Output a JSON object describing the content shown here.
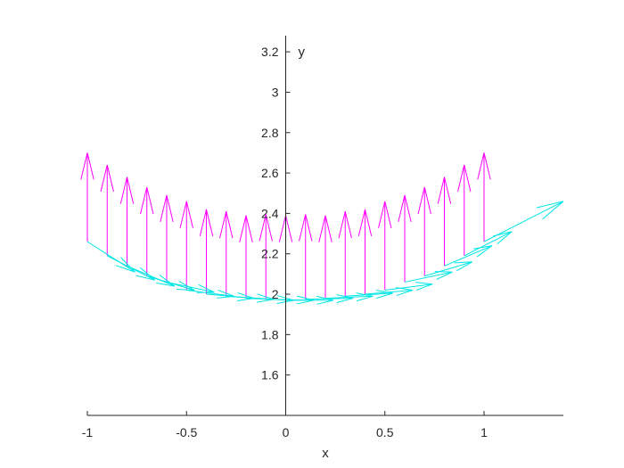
{
  "chart_data": {
    "type": "quiver",
    "xlabel": "x",
    "ylabel": "y",
    "xlim": [
      -1,
      1.4
    ],
    "ylim": [
      1.4,
      3.28
    ],
    "axis_location": "origin",
    "grid": false,
    "xticks": [
      -1,
      -0.5,
      0,
      0.5,
      1
    ],
    "xtick_labels": [
      "-1",
      "-0.5",
      "0",
      "0.5",
      "1"
    ],
    "yticks": [
      1.6,
      1.8,
      2,
      2.2,
      2.4,
      2.6,
      2.8,
      3,
      3.2
    ],
    "ytick_labels": [
      "1.6",
      "1.8",
      "2",
      "2.2",
      "2.4",
      "2.6",
      "2.8",
      "3",
      "3.2"
    ],
    "series": [
      {
        "color": "#ff00ff",
        "x": [
          -1,
          -0.9,
          -0.8,
          -0.7,
          -0.6,
          -0.5,
          -0.4,
          -0.3,
          -0.2,
          -0.1,
          0,
          0.1,
          0.2,
          0.3,
          0.4,
          0.5,
          0.6,
          0.7,
          0.8,
          0.9,
          1
        ],
        "y": [
          2.26,
          2.19,
          2.14,
          2.09,
          2.06,
          2.02,
          2.0,
          1.99,
          1.98,
          1.975,
          1.97,
          1.975,
          1.98,
          1.99,
          2.0,
          2.02,
          2.06,
          2.09,
          2.14,
          2.19,
          2.26
        ],
        "u": [
          0,
          0,
          0,
          0,
          0,
          0,
          0,
          0,
          0,
          0,
          0,
          0,
          0,
          0,
          0,
          0,
          0,
          0,
          0,
          0,
          0
        ],
        "v": [
          0.44,
          0.45,
          0.44,
          0.44,
          0.43,
          0.44,
          0.42,
          0.42,
          0.41,
          0.42,
          0.42,
          0.42,
          0.41,
          0.42,
          0.42,
          0.44,
          0.43,
          0.44,
          0.44,
          0.45,
          0.44
        ]
      },
      {
        "color": "#00e5e5",
        "x": [
          -1,
          -0.9,
          -0.8,
          -0.7,
          -0.6,
          -0.5,
          -0.4,
          -0.3,
          -0.2,
          -0.1,
          0,
          0.1,
          0.2,
          0.3,
          0.4,
          0.5,
          0.6,
          0.7,
          0.8,
          0.9,
          1
        ],
        "y": [
          2.26,
          2.19,
          2.14,
          2.09,
          2.06,
          2.02,
          2.0,
          1.99,
          1.98,
          1.975,
          1.97,
          1.975,
          1.98,
          1.99,
          2.0,
          2.02,
          2.06,
          2.09,
          2.14,
          2.19,
          2.26
        ],
        "u": [
          0.24,
          0.24,
          0.24,
          0.24,
          0.24,
          0.24,
          0.24,
          0.24,
          0.24,
          0.24,
          0.24,
          0.24,
          0.24,
          0.24,
          0.24,
          0.24,
          0.24,
          0.24,
          0.24,
          0.24,
          0.4
        ],
        "v": [
          -0.15,
          -0.12,
          -0.1,
          -0.07,
          -0.05,
          -0.03,
          -0.02,
          -0.015,
          -0.01,
          -0.005,
          0.0,
          0.005,
          0.01,
          0.015,
          0.02,
          0.03,
          0.05,
          0.07,
          0.1,
          0.12,
          0.2
        ]
      }
    ]
  }
}
